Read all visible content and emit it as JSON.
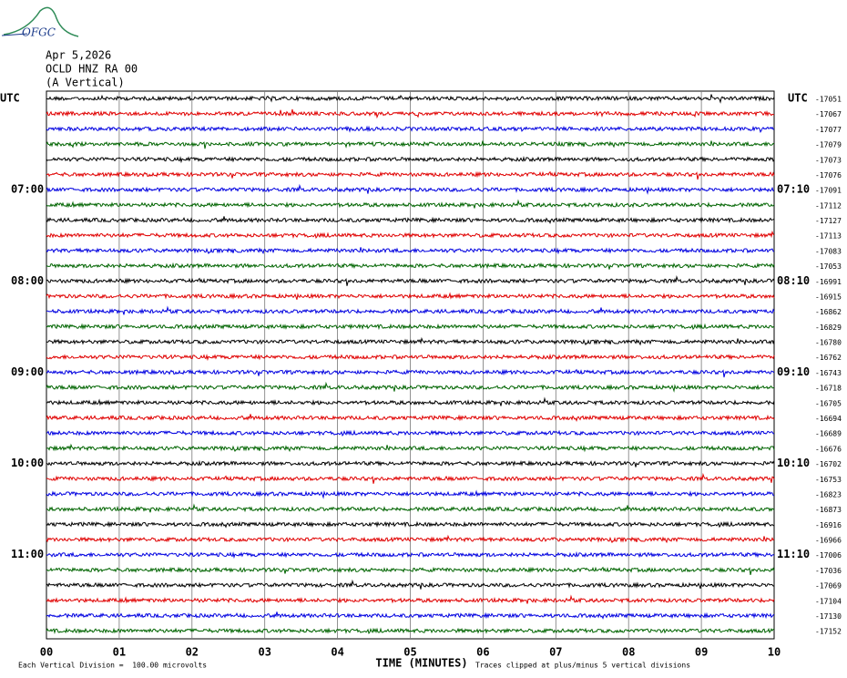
{
  "logo": "OFGC",
  "header": {
    "date": "Apr 5,2026",
    "station": "OCLD HNZ RA 00",
    "component": "(A Vertical)"
  },
  "rows": [
    {
      "left": "UTC",
      "right": "UTC",
      "offset": "-17051"
    },
    {
      "offset": "-17067"
    },
    {
      "offset": "-17077"
    },
    {
      "offset": "-17079"
    },
    {
      "offset": "-17073"
    },
    {
      "offset": "-17076"
    },
    {
      "left": "07:00",
      "right": "07:10",
      "offset": "-17091"
    },
    {
      "offset": "-17112"
    },
    {
      "offset": "-17127"
    },
    {
      "offset": "-17113"
    },
    {
      "offset": "-17083"
    },
    {
      "offset": "-17053"
    },
    {
      "left": "08:00",
      "right": "08:10",
      "offset": "-16991"
    },
    {
      "offset": "-16915"
    },
    {
      "offset": "-16862"
    },
    {
      "offset": "-16829"
    },
    {
      "offset": "-16780"
    },
    {
      "offset": "-16762"
    },
    {
      "left": "09:00",
      "right": "09:10",
      "offset": "-16743"
    },
    {
      "offset": "-16718"
    },
    {
      "offset": "-16705"
    },
    {
      "offset": "-16694"
    },
    {
      "offset": "-16689"
    },
    {
      "offset": "-16676"
    },
    {
      "left": "10:00",
      "right": "10:10",
      "offset": "-16702"
    },
    {
      "offset": "-16753"
    },
    {
      "offset": "-16823"
    },
    {
      "offset": "-16873"
    },
    {
      "offset": "-16916"
    },
    {
      "offset": "-16966"
    },
    {
      "left": "11:00",
      "right": "11:10",
      "offset": "-17006"
    },
    {
      "offset": "-17036"
    },
    {
      "offset": "-17069"
    },
    {
      "offset": "-17104"
    },
    {
      "offset": "-17130"
    },
    {
      "offset": "-17152"
    }
  ],
  "x_axis": {
    "ticks": [
      "00",
      "01",
      "02",
      "03",
      "04",
      "05",
      "06",
      "07",
      "08",
      "09",
      "10"
    ],
    "title": "TIME (MINUTES)"
  },
  "footer": {
    "scale": "Each Vertical Division =  100.00 microvolts",
    "clip": "Traces clipped at plus/minus 5 vertical divisions"
  }
}
